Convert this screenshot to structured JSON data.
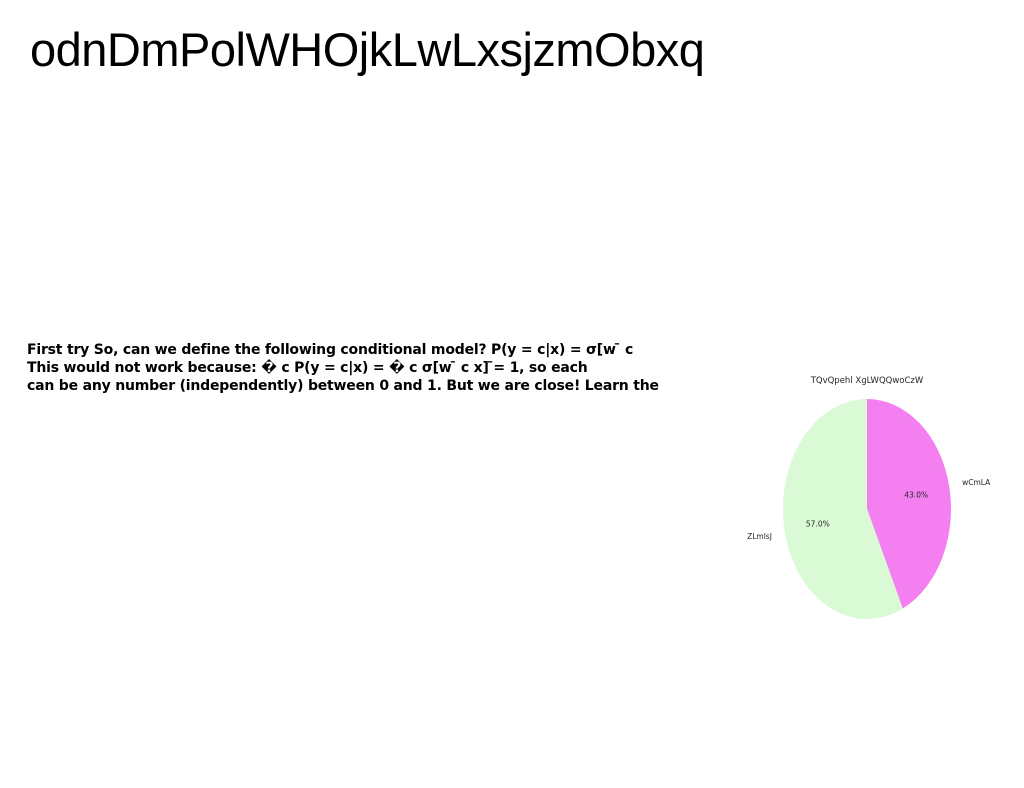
{
  "page": {
    "title": "odnDmPolWHOjkLwLxsjzmObxq",
    "body_lines": [
      "First try So, can we define the following conditional model? P(y = c|x) = σ[w  ̄ c",
      "This would not work because: � c P(y = c|x) = � c σ[w  ̄ c x]  ̄= 1, so each",
      "can be any number (independently) between 0 and 1. But we are close! Learn the"
    ]
  },
  "chart_data": {
    "type": "pie",
    "title": "TQvQpehl XgLWQQwoCzW",
    "slices": [
      {
        "label": "wCmLA",
        "value": 43.0,
        "pct_label": "43.0%",
        "color": "#f47ff0"
      },
      {
        "label": "ZLmlsJ",
        "value": 57.0,
        "pct_label": "57.0%",
        "color": "#dafad6"
      }
    ],
    "start_angle_deg": 90,
    "direction": "clockwise",
    "legend": "none"
  }
}
